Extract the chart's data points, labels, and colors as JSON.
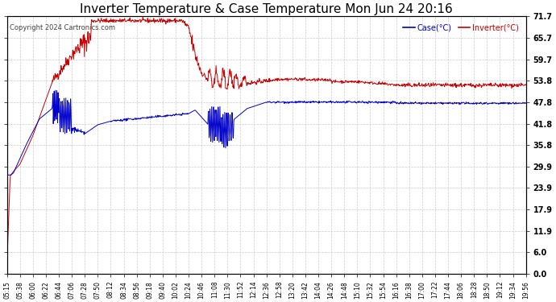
{
  "title": "Inverter Temperature & Case Temperature Mon Jun 24 20:16",
  "copyright": "Copyright 2024 Cartronics.com",
  "yticks": [
    0.0,
    6.0,
    11.9,
    17.9,
    23.9,
    29.9,
    35.8,
    41.8,
    47.8,
    53.8,
    59.7,
    65.7,
    71.7
  ],
  "xtick_labels": [
    "05:15",
    "05:38",
    "06:00",
    "06:22",
    "06:44",
    "07:06",
    "07:28",
    "07:50",
    "08:12",
    "08:34",
    "08:56",
    "09:18",
    "09:40",
    "10:02",
    "10:24",
    "10:46",
    "11:08",
    "11:30",
    "11:52",
    "12:14",
    "12:36",
    "12:58",
    "13:20",
    "13:42",
    "14:04",
    "14:26",
    "14:48",
    "15:10",
    "15:32",
    "15:54",
    "16:16",
    "16:38",
    "17:00",
    "17:22",
    "17:44",
    "18:06",
    "18:28",
    "18:50",
    "19:12",
    "19:34",
    "19:56"
  ],
  "ylim": [
    0.0,
    71.7
  ],
  "bg_color": "#ffffff",
  "grid_color": "#cccccc",
  "case_color": "#0000cc",
  "inverter_color": "#cc0000",
  "title_fontsize": 11,
  "legend_case_label": "Case(°C)",
  "legend_inverter_label": "Inverter(°C)"
}
